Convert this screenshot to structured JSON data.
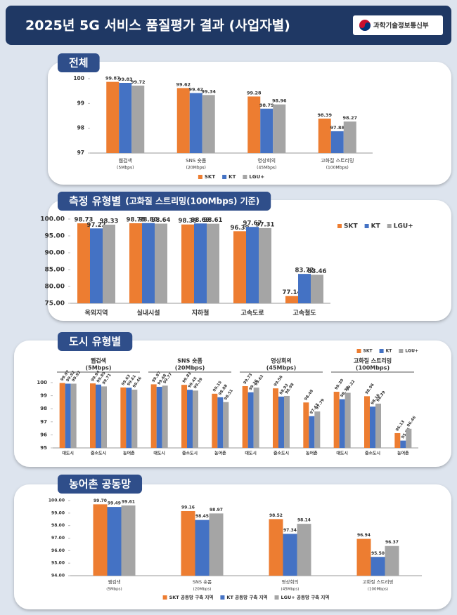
{
  "header": {
    "title": "2025년 5G 서비스 품질평가 결과 (사업자별)",
    "logo": "과학기술정보통신부"
  },
  "chart_data": [
    {
      "type": "bar",
      "title": "전체",
      "categories": [
        [
          "웹검색",
          "(5Mbps)"
        ],
        [
          "SNS 숏폼",
          "(20Mbps)"
        ],
        [
          "영상회의",
          "(45Mbps)"
        ],
        [
          "고화질 스트리밍",
          "(100Mbps)"
        ]
      ],
      "series": [
        {
          "name": "SKT",
          "color": "#ed7d31",
          "values": [
            99.87,
            99.62,
            99.28,
            98.39
          ]
        },
        {
          "name": "KT",
          "color": "#4472c4",
          "values": [
            99.83,
            99.42,
            98.79,
            97.88
          ]
        },
        {
          "name": "LGU+",
          "color": "#a5a5a5",
          "values": [
            99.72,
            99.34,
            98.96,
            98.27
          ]
        }
      ],
      "ylim": [
        97,
        100
      ],
      "yticks": [
        97,
        98,
        99,
        100
      ],
      "grid": false,
      "legend": "bottom"
    },
    {
      "type": "bar",
      "title": "측정 유형별",
      "subtitle": "(고화질 스트리밍(100Mbps) 기준)",
      "categories": [
        "옥외지역",
        "실내시설",
        "지하철",
        "고속도로",
        "고속철도"
      ],
      "series": [
        {
          "name": "SKT",
          "color": "#ed7d31",
          "values": [
            98.73,
            98.75,
            98.39,
            96.39,
            77.14
          ]
        },
        {
          "name": "KT",
          "color": "#4472c4",
          "values": [
            97.22,
            98.8,
            98.69,
            97.67,
            83.72
          ],
          "value_labels": [
            "97.22",
            "98.80",
            "98.69",
            "97.67",
            "83.72"
          ]
        },
        {
          "name": "LGU+",
          "color": "#a5a5a5",
          "values": [
            98.33,
            98.64,
            98.61,
            97.31,
            83.46
          ]
        }
      ],
      "ylim": [
        75,
        100
      ],
      "yticks": [
        {
          "value": 75,
          "label": "75.00"
        },
        {
          "value": 80,
          "label": "80.00"
        },
        {
          "value": 85,
          "label": "85.00"
        },
        {
          "value": 90,
          "label": "90.00"
        },
        {
          "value": 95,
          "label": "95.00"
        },
        {
          "value": 100,
          "label": "100.00"
        }
      ],
      "grid": false,
      "legend": "right"
    },
    {
      "type": "bar",
      "title": "도시 유형별",
      "groups": [
        [
          "웹검색",
          "(5Mbps)"
        ],
        [
          "SNS 숏폼",
          "(20Mbps)"
        ],
        [
          "영상회의",
          "(45Mbps)"
        ],
        [
          "고화질 스트리밍",
          "(100Mbps)"
        ]
      ],
      "categories": [
        "대도시",
        "중소도시",
        "농어촌",
        "대도시",
        "중소도시",
        "농어촌",
        "대도시",
        "중소도시",
        "농어촌",
        "대도시",
        "중소도시",
        "농어촌"
      ],
      "series": [
        {
          "name": "SKT",
          "color": "#ed7d31",
          "values": [
            99.97,
            99.94,
            99.63,
            99.87,
            99.83,
            99.15,
            99.73,
            99.56,
            98.48,
            99.3,
            98.96,
            96.13
          ],
          "value_labels": [
            "99.97",
            "99.94",
            "99.63",
            "99.87",
            "99.83",
            "99.15",
            "99.73",
            "99.56",
            "98.48",
            "99.30",
            "98.96",
            "96.13"
          ]
        },
        {
          "name": "KT",
          "color": "#4472c4",
          "values": [
            99.92,
            99.85,
            99.61,
            99.68,
            99.45,
            98.88,
            99.26,
            98.93,
            97.43,
            98.73,
            98.16,
            95.56
          ]
        },
        {
          "name": "LGU+",
          "color": "#a5a5a5",
          "values": [
            99.92,
            99.71,
            99.46,
            99.77,
            99.39,
            98.51,
            99.62,
            98.98,
            97.79,
            99.22,
            98.39,
            96.46
          ]
        }
      ],
      "ylim": [
        95,
        100
      ],
      "yticks": [
        95,
        96,
        97,
        98,
        99,
        100
      ],
      "grid": false,
      "legend": "top-right"
    },
    {
      "type": "bar",
      "title": "농어촌 공동망",
      "categories": [
        [
          "웹검색",
          "(5Mbps)"
        ],
        [
          "SNS 숏폼",
          "(20Mbps)"
        ],
        [
          "영상회의",
          "(45Mbps)"
        ],
        [
          "고화질 스트리밍",
          "(100Mbps)"
        ]
      ],
      "series": [
        {
          "name": "SKT 공동망 구축 지역",
          "color": "#ed7d31",
          "values": [
            99.7,
            99.16,
            98.52,
            96.94
          ],
          "value_labels": [
            "99.70",
            "99.16",
            "98.52",
            "96.94"
          ]
        },
        {
          "name": "KT 공동망 구축 지역",
          "color": "#4472c4",
          "values": [
            99.49,
            98.45,
            97.34,
            95.5
          ],
          "value_labels": [
            "99.49",
            "98.45",
            "97.34",
            "95.50"
          ]
        },
        {
          "name": "LGU+ 공동망 구축 지역",
          "color": "#a5a5a5",
          "values": [
            99.61,
            98.97,
            98.14,
            96.37
          ]
        }
      ],
      "ylim": [
        94,
        100
      ],
      "yticks": [
        {
          "value": 94,
          "label": "94.00"
        },
        {
          "value": 95,
          "label": "95.00"
        },
        {
          "value": 96,
          "label": "96.00"
        },
        {
          "value": 97,
          "label": "97.00"
        },
        {
          "value": 98,
          "label": "98.00"
        },
        {
          "value": 99,
          "label": "99.00"
        },
        {
          "value": 100,
          "label": "100.00"
        }
      ],
      "grid": false,
      "legend": "bottom"
    }
  ]
}
